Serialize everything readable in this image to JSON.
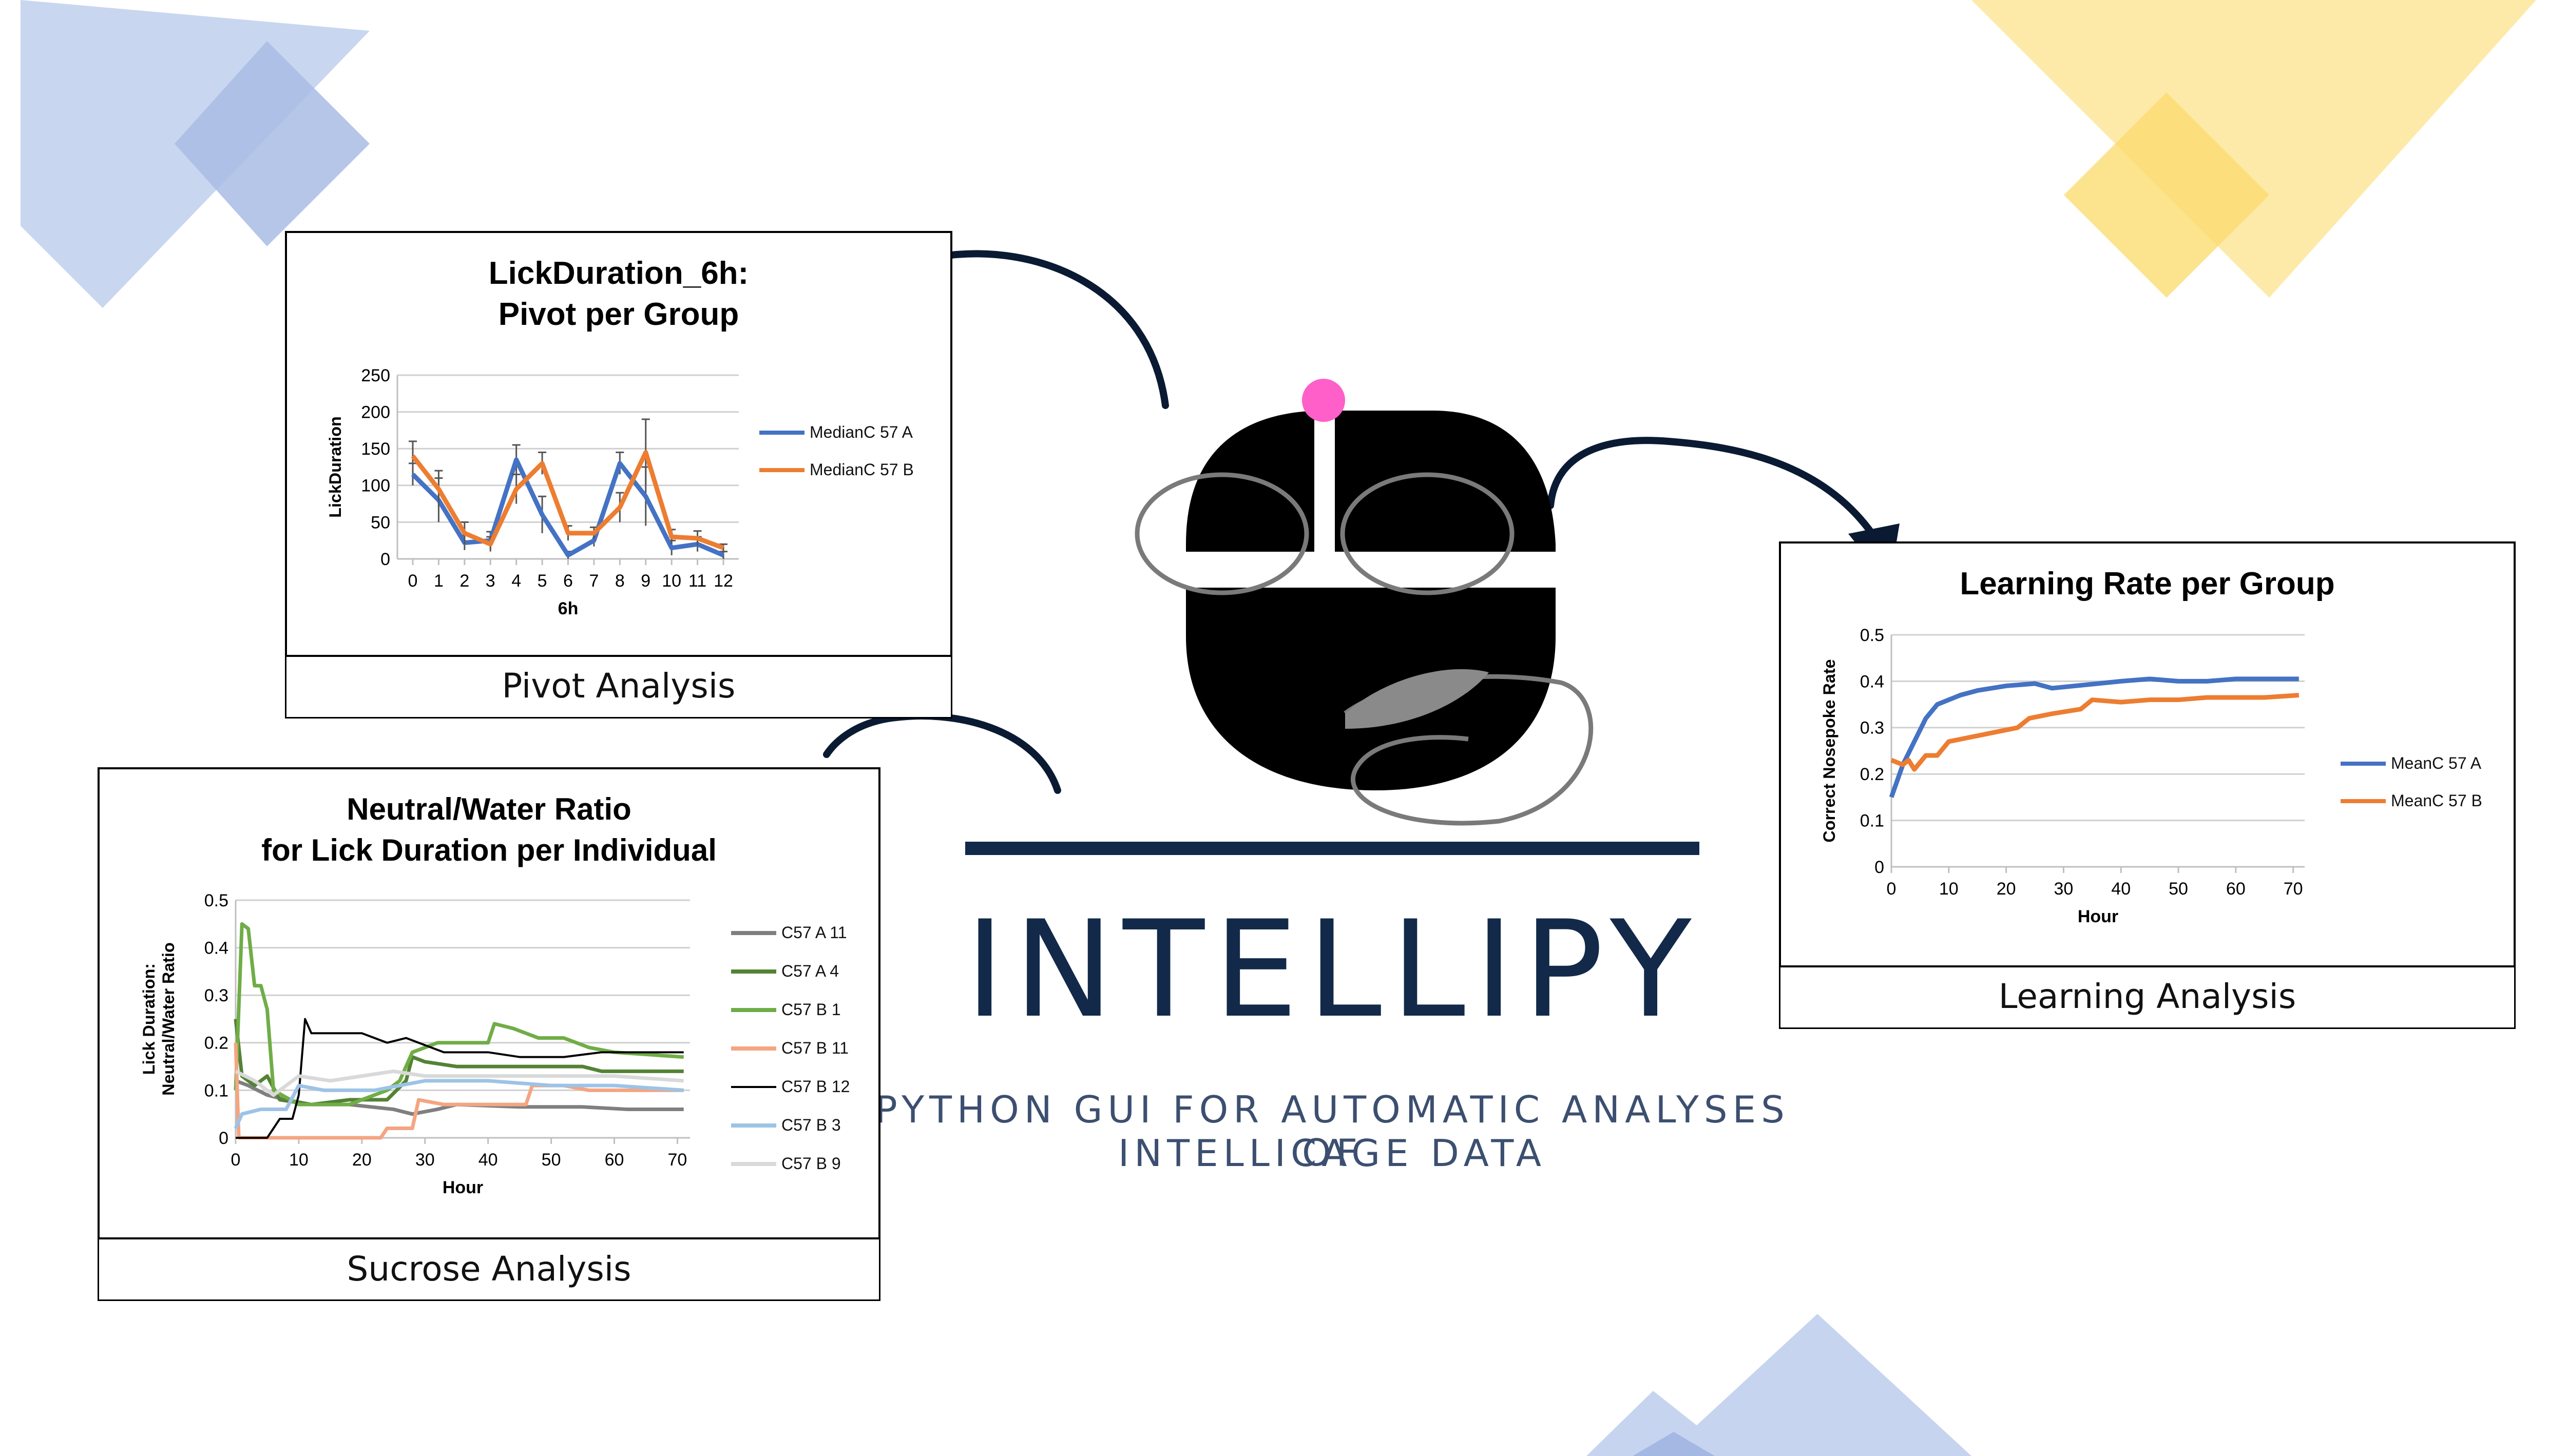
{
  "brand": {
    "name": "INTELLIPY",
    "tagline_line1": "PYTHON GUI FOR AUTOMATIC ANALYSES OF",
    "tagline_line2": "INTELLICAGE DATA",
    "color": "#12294a"
  },
  "colors": {
    "blue": "#4472c4",
    "orange": "#ed7d31",
    "green": "#70ad47",
    "dark_green": "#548235",
    "gray": "#7f7f7f",
    "black": "#000000",
    "salmon": "#f4a582",
    "light_blue": "#9dc3e6",
    "light_gray": "#d9d9d9",
    "decor_blue": "#c5d3ee",
    "decor_yellow": "#fde9a8",
    "pink_dot": "#ff5fc8"
  },
  "panels": {
    "pivot": {
      "caption": "Pivot Analysis"
    },
    "sucrose": {
      "caption": "Sucrose Analysis"
    },
    "learning": {
      "caption": "Learning Analysis"
    }
  },
  "chart_data": [
    {
      "id": "pivot",
      "type": "line",
      "title_line1": "LickDuration_6h:",
      "title_line2": "Pivot per Group",
      "xlabel": "6h",
      "ylabel": "LickDuration",
      "categories": [
        "0",
        "1",
        "2",
        "3",
        "4",
        "5",
        "6",
        "7",
        "8",
        "9",
        "10",
        "11",
        "12"
      ],
      "ylim": [
        0,
        250
      ],
      "yticks": [
        0,
        50,
        100,
        150,
        200,
        250
      ],
      "grid": true,
      "legend_position": "right",
      "error_bars": true,
      "series": [
        {
          "name": "MedianC 57 A",
          "color": "#4472c4",
          "values": [
            115,
            80,
            22,
            25,
            135,
            60,
            5,
            25,
            130,
            85,
            15,
            20,
            5
          ],
          "errors": [
            15,
            30,
            10,
            12,
            20,
            25,
            5,
            8,
            15,
            40,
            10,
            10,
            5
          ]
        },
        {
          "name": "MedianC 57 B",
          "color": "#ed7d31",
          "values": [
            140,
            95,
            35,
            20,
            95,
            130,
            35,
            35,
            70,
            145,
            30,
            28,
            15
          ],
          "errors": [
            20,
            25,
            15,
            10,
            20,
            15,
            10,
            8,
            20,
            45,
            10,
            10,
            5
          ]
        }
      ]
    },
    {
      "id": "sucrose",
      "type": "line",
      "title_line1": "Neutral/Water Ratio",
      "title_line2": "for Lick Duration per Individual",
      "xlabel": "Hour",
      "ylabel_line1": "Lick Duration:",
      "ylabel_line2": "Neutral/Water Ratio",
      "xlim": [
        0,
        72
      ],
      "xticks": [
        0,
        10,
        20,
        30,
        40,
        50,
        60,
        70
      ],
      "ylim": [
        0,
        0.5
      ],
      "yticks": [
        0,
        0.1,
        0.2,
        0.3,
        0.4,
        0.5
      ],
      "grid": true,
      "legend_position": "right",
      "series": [
        {
          "name": "C57 A 11",
          "color": "#7f7f7f",
          "width": 7,
          "points": [
            [
              0,
              0.12
            ],
            [
              2,
              0.11
            ],
            [
              5,
              0.09
            ],
            [
              8,
              0.08
            ],
            [
              12,
              0.07
            ],
            [
              18,
              0.07
            ],
            [
              25,
              0.06
            ],
            [
              28,
              0.05
            ],
            [
              32,
              0.06
            ],
            [
              35,
              0.07
            ],
            [
              45,
              0.065
            ],
            [
              55,
              0.065
            ],
            [
              62,
              0.06
            ],
            [
              71,
              0.06
            ]
          ]
        },
        {
          "name": "C57 A 4",
          "color": "#548235",
          "width": 7,
          "points": [
            [
              0,
              0.25
            ],
            [
              1,
              0.13
            ],
            [
              3,
              0.11
            ],
            [
              5,
              0.13
            ],
            [
              7,
              0.08
            ],
            [
              12,
              0.07
            ],
            [
              18,
              0.08
            ],
            [
              24,
              0.08
            ],
            [
              27,
              0.12
            ],
            [
              28,
              0.17
            ],
            [
              30,
              0.16
            ],
            [
              35,
              0.15
            ],
            [
              45,
              0.15
            ],
            [
              55,
              0.15
            ],
            [
              58,
              0.14
            ],
            [
              71,
              0.14
            ]
          ]
        },
        {
          "name": "C57 B 1",
          "color": "#70ad47",
          "width": 7,
          "points": [
            [
              0,
              0.1
            ],
            [
              1,
              0.45
            ],
            [
              2,
              0.44
            ],
            [
              3,
              0.32
            ],
            [
              4,
              0.32
            ],
            [
              5,
              0.27
            ],
            [
              6,
              0.1
            ],
            [
              10,
              0.07
            ],
            [
              18,
              0.07
            ],
            [
              24,
              0.1
            ],
            [
              26,
              0.12
            ],
            [
              28,
              0.18
            ],
            [
              32,
              0.2
            ],
            [
              40,
              0.2
            ],
            [
              41,
              0.24
            ],
            [
              44,
              0.23
            ],
            [
              48,
              0.21
            ],
            [
              52,
              0.21
            ],
            [
              56,
              0.19
            ],
            [
              60,
              0.18
            ],
            [
              71,
              0.17
            ]
          ]
        },
        {
          "name": "C57 B 11",
          "color": "#f4a582",
          "width": 7,
          "points": [
            [
              0,
              0.2
            ],
            [
              0.5,
              0
            ],
            [
              8,
              0
            ],
            [
              23,
              0
            ],
            [
              24,
              0.02
            ],
            [
              28,
              0.02
            ],
            [
              29,
              0.08
            ],
            [
              33,
              0.07
            ],
            [
              40,
              0.07
            ],
            [
              46,
              0.07
            ],
            [
              47,
              0.11
            ],
            [
              52,
              0.11
            ],
            [
              56,
              0.1
            ],
            [
              71,
              0.1
            ]
          ]
        },
        {
          "name": "C57 B 12",
          "color": "#000000",
          "width": 4,
          "points": [
            [
              0,
              0
            ],
            [
              5,
              0
            ],
            [
              7,
              0.04
            ],
            [
              9,
              0.04
            ],
            [
              10,
              0.09
            ],
            [
              11,
              0.25
            ],
            [
              12,
              0.22
            ],
            [
              20,
              0.22
            ],
            [
              24,
              0.2
            ],
            [
              27,
              0.21
            ],
            [
              33,
              0.18
            ],
            [
              40,
              0.18
            ],
            [
              45,
              0.17
            ],
            [
              52,
              0.17
            ],
            [
              58,
              0.18
            ],
            [
              71,
              0.18
            ]
          ]
        },
        {
          "name": "C57 B 3",
          "color": "#9dc3e6",
          "width": 7,
          "points": [
            [
              0,
              0.02
            ],
            [
              1,
              0.05
            ],
            [
              4,
              0.06
            ],
            [
              8,
              0.06
            ],
            [
              10,
              0.11
            ],
            [
              14,
              0.1
            ],
            [
              22,
              0.1
            ],
            [
              30,
              0.12
            ],
            [
              40,
              0.12
            ],
            [
              50,
              0.11
            ],
            [
              60,
              0.11
            ],
            [
              71,
              0.1
            ]
          ]
        },
        {
          "name": "C57 B 9",
          "color": "#d9d9d9",
          "width": 7,
          "points": [
            [
              0,
              0.14
            ],
            [
              3,
              0.12
            ],
            [
              6,
              0.09
            ],
            [
              10,
              0.13
            ],
            [
              15,
              0.12
            ],
            [
              20,
              0.13
            ],
            [
              25,
              0.14
            ],
            [
              30,
              0.13
            ],
            [
              40,
              0.13
            ],
            [
              50,
              0.13
            ],
            [
              60,
              0.13
            ],
            [
              71,
              0.12
            ]
          ]
        }
      ]
    },
    {
      "id": "learning",
      "type": "line",
      "title": "Learning Rate per Group",
      "xlabel": "Hour",
      "ylabel": "Correct Nosepoke Rate",
      "xlim": [
        0,
        72
      ],
      "xticks": [
        0,
        10,
        20,
        30,
        40,
        50,
        60,
        70
      ],
      "ylim": [
        0,
        0.5
      ],
      "yticks": [
        0,
        0.1,
        0.2,
        0.3,
        0.4,
        0.5
      ],
      "grid": true,
      "legend_position": "right",
      "series": [
        {
          "name": "MeanC 57 A",
          "color": "#4472c4",
          "points": [
            [
              0,
              0.15
            ],
            [
              2,
              0.22
            ],
            [
              4,
              0.27
            ],
            [
              6,
              0.32
            ],
            [
              8,
              0.35
            ],
            [
              10,
              0.36
            ],
            [
              12,
              0.37
            ],
            [
              15,
              0.38
            ],
            [
              20,
              0.39
            ],
            [
              25,
              0.395
            ],
            [
              28,
              0.385
            ],
            [
              32,
              0.39
            ],
            [
              36,
              0.395
            ],
            [
              40,
              0.4
            ],
            [
              45,
              0.405
            ],
            [
              50,
              0.4
            ],
            [
              55,
              0.4
            ],
            [
              60,
              0.405
            ],
            [
              65,
              0.405
            ],
            [
              71,
              0.405
            ]
          ]
        },
        {
          "name": "MeanC 57 B",
          "color": "#ed7d31",
          "points": [
            [
              0,
              0.23
            ],
            [
              2,
              0.22
            ],
            [
              3,
              0.23
            ],
            [
              4,
              0.21
            ],
            [
              6,
              0.24
            ],
            [
              8,
              0.24
            ],
            [
              10,
              0.27
            ],
            [
              14,
              0.28
            ],
            [
              18,
              0.29
            ],
            [
              22,
              0.3
            ],
            [
              24,
              0.32
            ],
            [
              28,
              0.33
            ],
            [
              33,
              0.34
            ],
            [
              35,
              0.36
            ],
            [
              40,
              0.355
            ],
            [
              45,
              0.36
            ],
            [
              50,
              0.36
            ],
            [
              55,
              0.365
            ],
            [
              60,
              0.365
            ],
            [
              65,
              0.365
            ],
            [
              71,
              0.37
            ]
          ]
        }
      ]
    }
  ]
}
